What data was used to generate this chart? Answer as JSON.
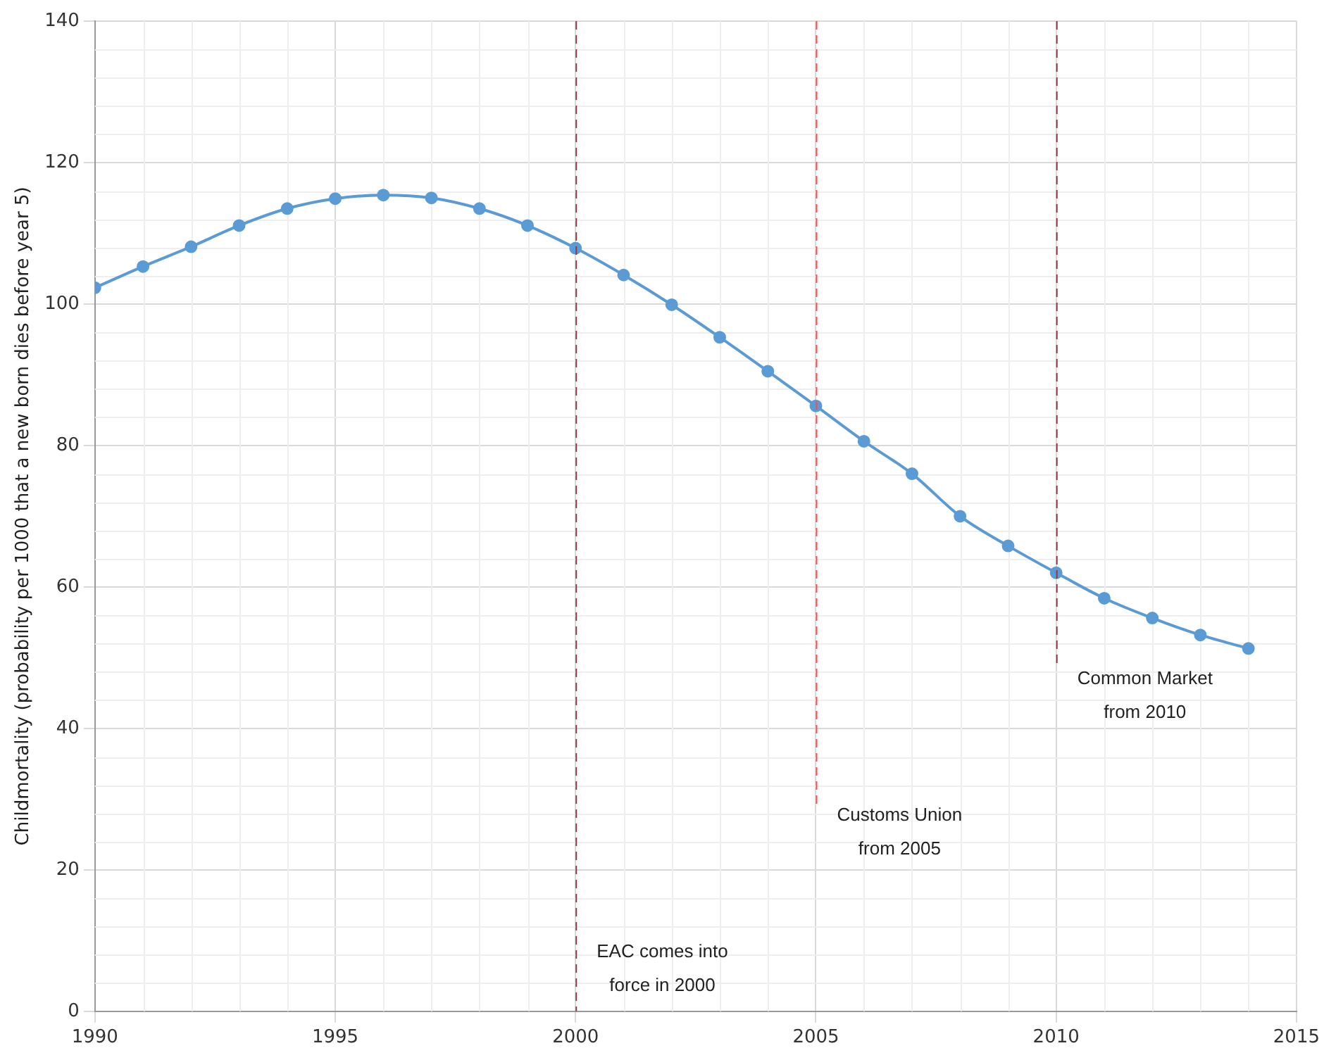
{
  "chart_data": {
    "type": "line",
    "ylabel": "Childmortality (probability per 1000 that a new born dies before year 5)",
    "x": [
      1990,
      1991,
      1992,
      1993,
      1994,
      1995,
      1996,
      1997,
      1998,
      1999,
      2000,
      2001,
      2002,
      2003,
      2004,
      2005,
      2006,
      2007,
      2008,
      2009,
      2010,
      2011,
      2012,
      2013,
      2014
    ],
    "series": [
      {
        "color": "#5b9bd5",
        "values": [
          102.3,
          105.3,
          108.1,
          111.1,
          113.5,
          114.9,
          115.4,
          115.0,
          113.5,
          111.1,
          107.9,
          104.1,
          99.9,
          95.3,
          90.5,
          85.6,
          80.6,
          76.0,
          70.0,
          65.8,
          62.0,
          58.4,
          55.6,
          53.2,
          51.3
        ]
      }
    ],
    "xlim": [
      1990,
      2015
    ],
    "xticks": [
      1990,
      1995,
      2000,
      2005,
      2010,
      2015
    ],
    "ylim": [
      0,
      140
    ],
    "yticks": [
      0,
      20,
      40,
      60,
      80,
      100,
      120,
      140
    ],
    "grid": true,
    "marker": "circle",
    "line_style": "solid",
    "legend": false,
    "ref_lines": [
      {
        "axis": "x",
        "value": 2000,
        "label": "EAC comes into\nforce in 2000",
        "color": "#8b3a46",
        "line_style": "dashed"
      },
      {
        "axis": "x",
        "value": 2005,
        "label": "Customs Union\nfrom 2005",
        "color": "#ff4a4a",
        "line_style": "dashed"
      },
      {
        "axis": "x",
        "value": 2010,
        "label": "Common Market\nfrom 2010",
        "color": "#8b3a46",
        "line_style": "dashed"
      }
    ]
  }
}
